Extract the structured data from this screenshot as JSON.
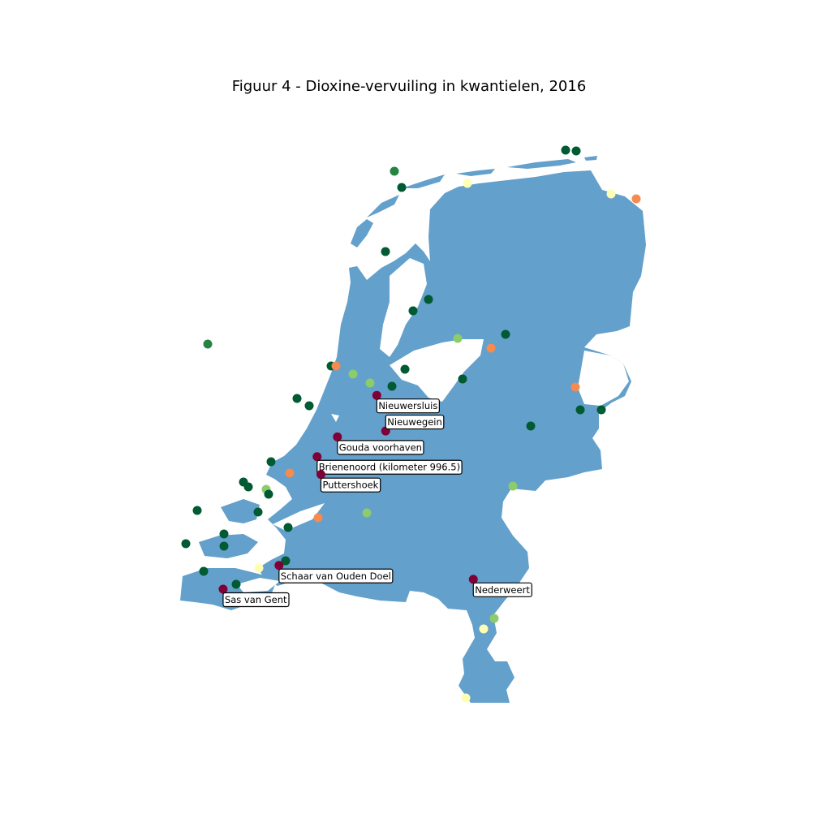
{
  "title": "Figuur 4 - Dioxine-vervuiling in kwantielen, 2016",
  "colors": {
    "land": "#63a0cb",
    "q1": "#005a32",
    "q1b": "#238443",
    "q2": "#8ccc6a",
    "q3": "#ffffb3",
    "q4": "#f58b4f",
    "q5": "#7f0036"
  },
  "labels": [
    {
      "name": "Nieuwersluis",
      "lon": 5.01,
      "lat": 52.21
    },
    {
      "name": "Nieuwegein",
      "lon": 5.08,
      "lat": 52.03
    },
    {
      "name": "Gouda voorhaven",
      "lon": 4.7,
      "lat": 52.0
    },
    {
      "name": "Brienenoord (kilometer 996.5)",
      "lon": 4.54,
      "lat": 51.9
    },
    {
      "name": "Puttershoek",
      "lon": 4.57,
      "lat": 51.81
    },
    {
      "name": "Schaar van Ouden Doel",
      "lon": 4.24,
      "lat": 51.35
    },
    {
      "name": "Sas van Gent",
      "lon": 3.8,
      "lat": 51.23
    },
    {
      "name": "Nederweert",
      "lon": 5.77,
      "lat": 51.28
    }
  ]
}
